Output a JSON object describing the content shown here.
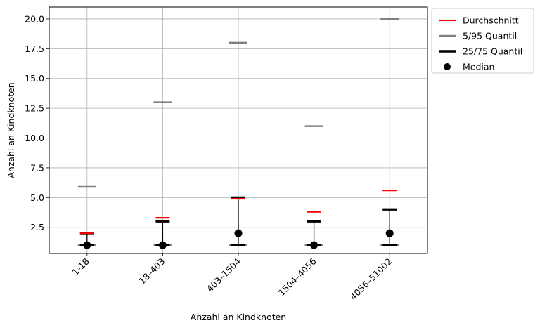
{
  "chart_data": {
    "type": "scatter",
    "xlabel": "Anzahl an Kindknoten",
    "ylabel": "Anzahl an Kindknoten",
    "ylim": [
      0.3,
      21
    ],
    "yticks": [
      2.5,
      5.0,
      7.5,
      10.0,
      12.5,
      15.0,
      17.5,
      20.0
    ],
    "grid": true,
    "legend_position": "outside-top-right",
    "categories": [
      "1-18",
      "18–403",
      "403–1504",
      "1504–4056",
      "4056–51002"
    ],
    "series": [
      {
        "name": "Durchschnitt",
        "marker": "hline",
        "color": "#ff0000",
        "values": [
          2.0,
          3.3,
          4.9,
          3.8,
          5.6
        ]
      },
      {
        "name": "5/95 Quantil",
        "marker": "hline",
        "color": "#808080",
        "values_low": [
          1,
          1,
          1,
          1,
          1
        ],
        "values_high": [
          5.9,
          13.0,
          18.0,
          11.0,
          20.0
        ]
      },
      {
        "name": "25/75 Quantil",
        "marker": "hline",
        "color": "#000000",
        "values_low": [
          1,
          1,
          1,
          1,
          1
        ],
        "values_high": [
          2.0,
          3.0,
          5.0,
          3.0,
          4.0
        ]
      },
      {
        "name": "Median",
        "marker": "circle",
        "color": "#000000",
        "values": [
          1,
          1,
          2,
          1,
          2
        ]
      }
    ]
  }
}
